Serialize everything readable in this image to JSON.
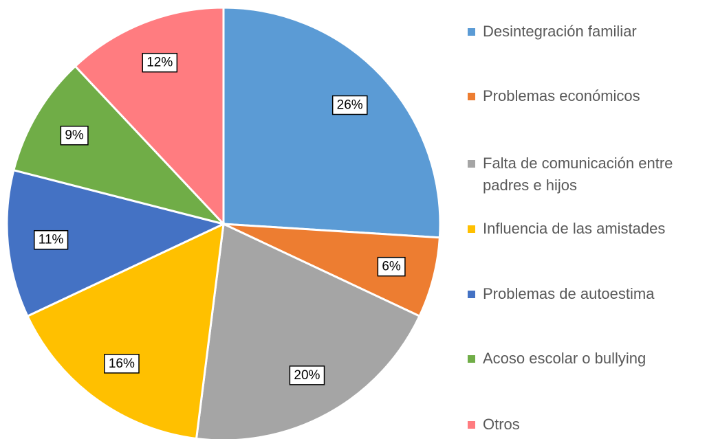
{
  "chart_data": {
    "type": "pie",
    "categories": [
      "Desintegración familiar",
      "Problemas económicos",
      "Falta de comunicación entre padres e hijos",
      "Influencia de las amistades",
      "Problemas de autoestima",
      "Acoso escolar o bullying",
      "Otros"
    ],
    "values": [
      26,
      6,
      20,
      16,
      11,
      9,
      12
    ],
    "value_labels": [
      "26%",
      "6%",
      "20%",
      "16%",
      "11%",
      "9%",
      "12%"
    ],
    "colors": [
      "#5b9bd5",
      "#ed7d31",
      "#a5a5a5",
      "#ffc000",
      "#4472c4",
      "#70ad47",
      "#ff7c80"
    ],
    "legend": "right"
  }
}
